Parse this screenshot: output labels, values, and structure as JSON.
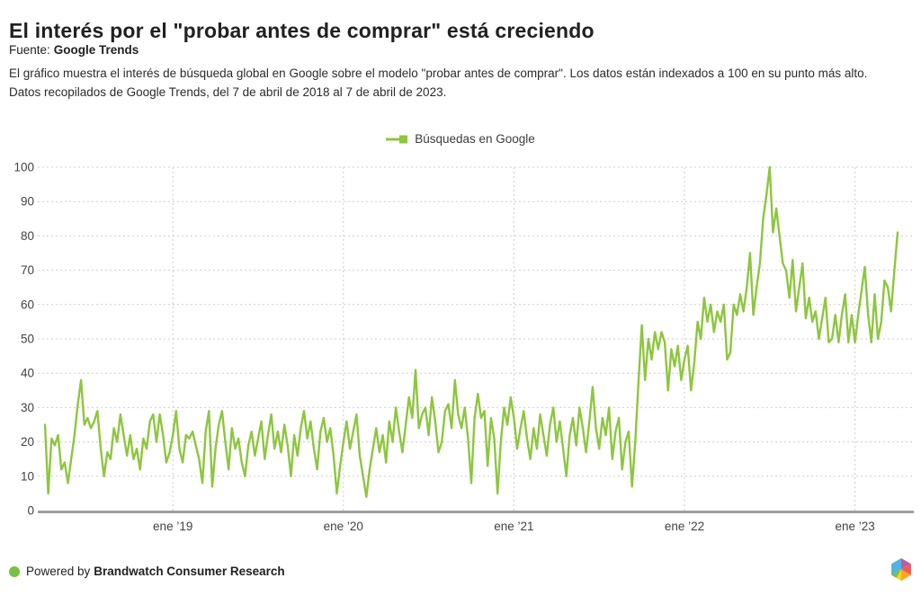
{
  "header": {
    "title": "El interés por el \"probar antes de comprar\" está creciendo",
    "source_label": "Fuente:",
    "source_name": "Google Trends",
    "description_line1": "El gráfico muestra el interés de búsqueda global en Google sobre el modelo \"probar antes de comprar\". Los datos están indexados a 100 en su punto más alto.",
    "description_line2": "Datos recopilados de Google Trends, del 7 de abril de 2018 al 7 de abril de 2023."
  },
  "legend": {
    "label": "Búsquedas en Google",
    "color": "#8dc63f"
  },
  "footer": {
    "powered_by": "Powered by",
    "brand": "Brandwatch Consumer Research",
    "dot_color": "#7ac143"
  },
  "logo_colors": {
    "blue": "#4fb5e0",
    "purple": "#ba5f9e",
    "red": "#ef5b5b",
    "orange": "#f7a823",
    "yellow": "#ffd117",
    "green": "#7ac143"
  },
  "chart_data": {
    "type": "line",
    "title": "",
    "xlabel": "",
    "ylabel": "",
    "ylim": [
      0,
      100
    ],
    "grid": "dashed",
    "grid_color": "#cccccc",
    "axis_color": "#9e9e9e",
    "label_color": "#424242",
    "y_ticks": [
      0,
      10,
      20,
      30,
      40,
      50,
      60,
      70,
      80,
      90,
      100
    ],
    "x_tick_labels": [
      "ene ’19",
      "ene ’20",
      "ene ’21",
      "ene ’22",
      "ene ’23"
    ],
    "x_tick_week_indices": [
      39,
      91,
      143,
      195,
      247
    ],
    "series": [
      {
        "name": "Búsquedas en Google",
        "color": "#8dc63f",
        "start_date": "2018-04-07",
        "end_date": "2023-04-07",
        "interval": "weekly",
        "values": [
          25,
          5,
          21,
          19,
          22,
          12,
          14,
          8,
          15,
          22,
          31,
          38,
          25,
          27,
          24,
          26,
          29,
          18,
          10,
          17,
          15,
          24,
          20,
          28,
          22,
          16,
          22,
          15,
          18,
          12,
          21,
          18,
          26,
          28,
          20,
          28,
          22,
          14,
          17,
          22,
          29,
          18,
          14,
          22,
          21,
          23,
          19,
          15,
          8,
          23,
          29,
          7,
          18,
          25,
          29,
          20,
          12,
          24,
          18,
          21,
          14,
          10,
          19,
          23,
          16,
          21,
          26,
          15,
          22,
          28,
          18,
          23,
          17,
          25,
          19,
          10,
          22,
          16,
          24,
          29,
          21,
          26,
          18,
          12,
          23,
          27,
          20,
          24,
          16,
          5,
          13,
          20,
          26,
          18,
          23,
          28,
          16,
          10,
          4,
          12,
          18,
          24,
          17,
          22,
          14,
          26,
          20,
          30,
          23,
          17,
          25,
          33,
          27,
          41,
          24,
          28,
          30,
          22,
          33,
          26,
          17,
          20,
          29,
          31,
          24,
          38,
          28,
          24,
          30,
          21,
          8,
          27,
          34,
          27,
          29,
          13,
          27,
          21,
          5,
          20,
          30,
          25,
          33,
          27,
          18,
          24,
          29,
          21,
          15,
          24,
          18,
          28,
          22,
          16,
          25,
          30,
          20,
          26,
          18,
          10,
          22,
          27,
          19,
          30,
          24,
          17,
          26,
          36,
          24,
          18,
          27,
          22,
          30,
          15,
          23,
          27,
          12,
          20,
          23,
          7,
          20,
          38,
          54,
          38,
          50,
          44,
          52,
          47,
          52,
          49,
          35,
          47,
          42,
          48,
          38,
          44,
          48,
          35,
          43,
          55,
          50,
          62,
          55,
          60,
          52,
          58,
          55,
          60,
          44,
          46,
          60,
          57,
          63,
          58,
          65,
          75,
          57,
          65,
          72,
          85,
          92,
          100,
          81,
          88,
          80,
          72,
          70,
          62,
          73,
          58,
          65,
          72,
          56,
          62,
          55,
          58,
          50,
          56,
          62,
          49,
          50,
          57,
          49,
          57,
          63,
          49,
          57,
          49,
          57,
          64,
          71,
          57,
          49,
          63,
          50,
          55,
          67,
          65,
          58,
          70,
          81
        ]
      }
    ]
  }
}
